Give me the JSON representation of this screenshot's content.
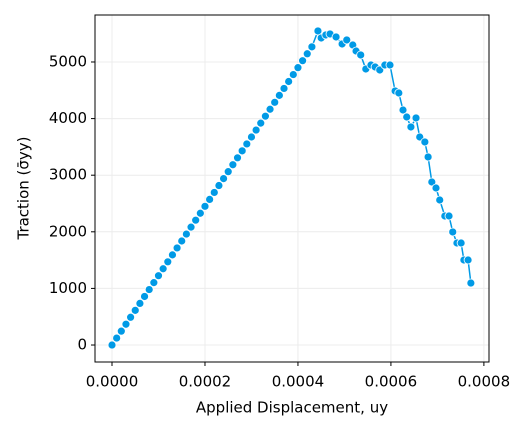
{
  "chart_data": {
    "type": "line",
    "xlabel": "Applied Displacement, uy",
    "ylabel": "Traction (σ̄yy)",
    "series": [
      {
        "name": "traction",
        "color": "#009ae6",
        "x": [
          0,
          1e-05,
          2e-05,
          3e-05,
          4e-05,
          5e-05,
          6e-05,
          7e-05,
          8e-05,
          9e-05,
          0.0001,
          0.00011,
          0.00012,
          0.00013,
          0.00014,
          0.00015,
          0.00016,
          0.00017,
          0.00018,
          0.00019,
          0.0002,
          0.00021,
          0.00022,
          0.00023,
          0.00024,
          0.00025,
          0.00026,
          0.00027,
          0.00028,
          0.00029,
          0.0003,
          0.00031,
          0.00032,
          0.00033,
          0.00034,
          0.00035,
          0.00036,
          0.00037,
          0.00038,
          0.00039,
          0.0004,
          0.00041,
          0.00042,
          0.00043,
          0.000443,
          0.00045,
          0.00046,
          0.000469,
          0.000482,
          0.000495,
          0.000505,
          0.000518,
          0.000525,
          0.000535,
          0.000546,
          0.000557,
          0.000566,
          0.000576,
          0.000587,
          0.000598,
          0.000609,
          0.000617,
          0.000626,
          0.000634,
          0.000643,
          0.000654,
          0.000662,
          0.000673,
          0.00068,
          0.000688,
          0.000697,
          0.000705,
          0.000716,
          0.000725,
          0.000733,
          0.000742,
          0.000751,
          0.000757,
          0.000766,
          0.000772
        ],
        "values": [
          0,
          122.5,
          245,
          367.5,
          490,
          612.5,
          735,
          857.5,
          980,
          1102.5,
          1225,
          1347.5,
          1470,
          1592.5,
          1715,
          1837.5,
          1960,
          2082.5,
          2205,
          2327.5,
          2450,
          2572.5,
          2695,
          2817.5,
          2940,
          3062.5,
          3185,
          3307.5,
          3430,
          3552.5,
          3675,
          3797.5,
          3920,
          4042.5,
          4165,
          4287.5,
          4410,
          4532.5,
          4655,
          4777.5,
          4900,
          5022.5,
          5145,
          5267.5,
          5548,
          5424,
          5477,
          5495,
          5442,
          5318,
          5389,
          5300,
          5194,
          5124,
          4876,
          4947,
          4912,
          4859,
          4947,
          4947,
          4488,
          4452,
          4152,
          4028,
          3852,
          4011,
          3675,
          3587,
          3322,
          2880,
          2774,
          2562,
          2279,
          2279,
          1997,
          1802,
          1802,
          1502,
          1502,
          1095
        ]
      }
    ],
    "xlim": [
      -3.66e-05,
      0.000811
    ],
    "xticks": [
      {
        "value": 0,
        "label": "0.0000"
      },
      {
        "value": 0.0002,
        "label": "0.0002"
      },
      {
        "value": 0.0004,
        "label": "0.0004"
      },
      {
        "value": 0.0006,
        "label": "0.0006"
      },
      {
        "value": 0.0008,
        "label": "0.0008"
      }
    ],
    "ylim": [
      -300,
      5830
    ],
    "yticks": [
      0,
      1000,
      2000,
      3000,
      4000,
      5000
    ],
    "grid": true
  }
}
